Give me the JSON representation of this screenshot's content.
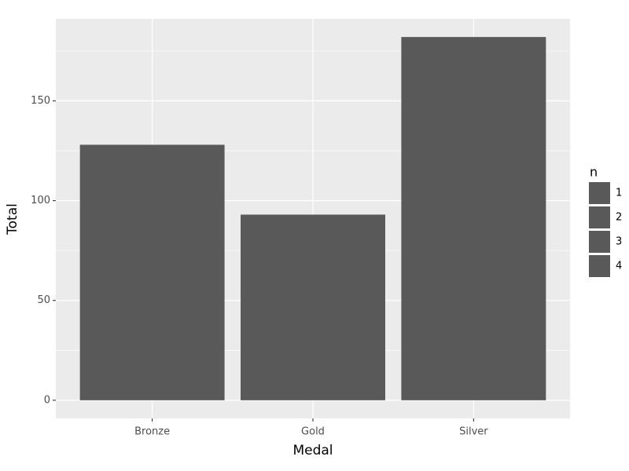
{
  "chart_data": {
    "type": "bar",
    "xlabel": "Medal",
    "ylabel": "Total",
    "categories": [
      "Bronze",
      "Gold",
      "Silver"
    ],
    "values": [
      128,
      93,
      182
    ],
    "color": "#595959",
    "ylim": [
      -9.1,
      191.1
    ],
    "yticks": [
      0,
      50,
      100,
      150
    ],
    "minor_yticks": [
      25,
      75,
      125,
      175
    ],
    "grid": true,
    "legend": {
      "title": "n",
      "position": "right",
      "entries": [
        1,
        2,
        3,
        4
      ],
      "color": "#595959"
    }
  }
}
